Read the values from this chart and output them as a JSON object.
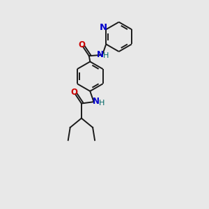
{
  "bg_color": "#e8e8e8",
  "bond_color": "#1a1a1a",
  "N_color": "#0000cc",
  "O_color": "#cc0000",
  "H_color": "#006666",
  "font_size_atom": 8.5,
  "line_width": 1.4,
  "figsize": [
    3.0,
    3.0
  ],
  "dpi": 100,
  "xlim": [
    0,
    10
  ],
  "ylim": [
    0,
    10
  ]
}
